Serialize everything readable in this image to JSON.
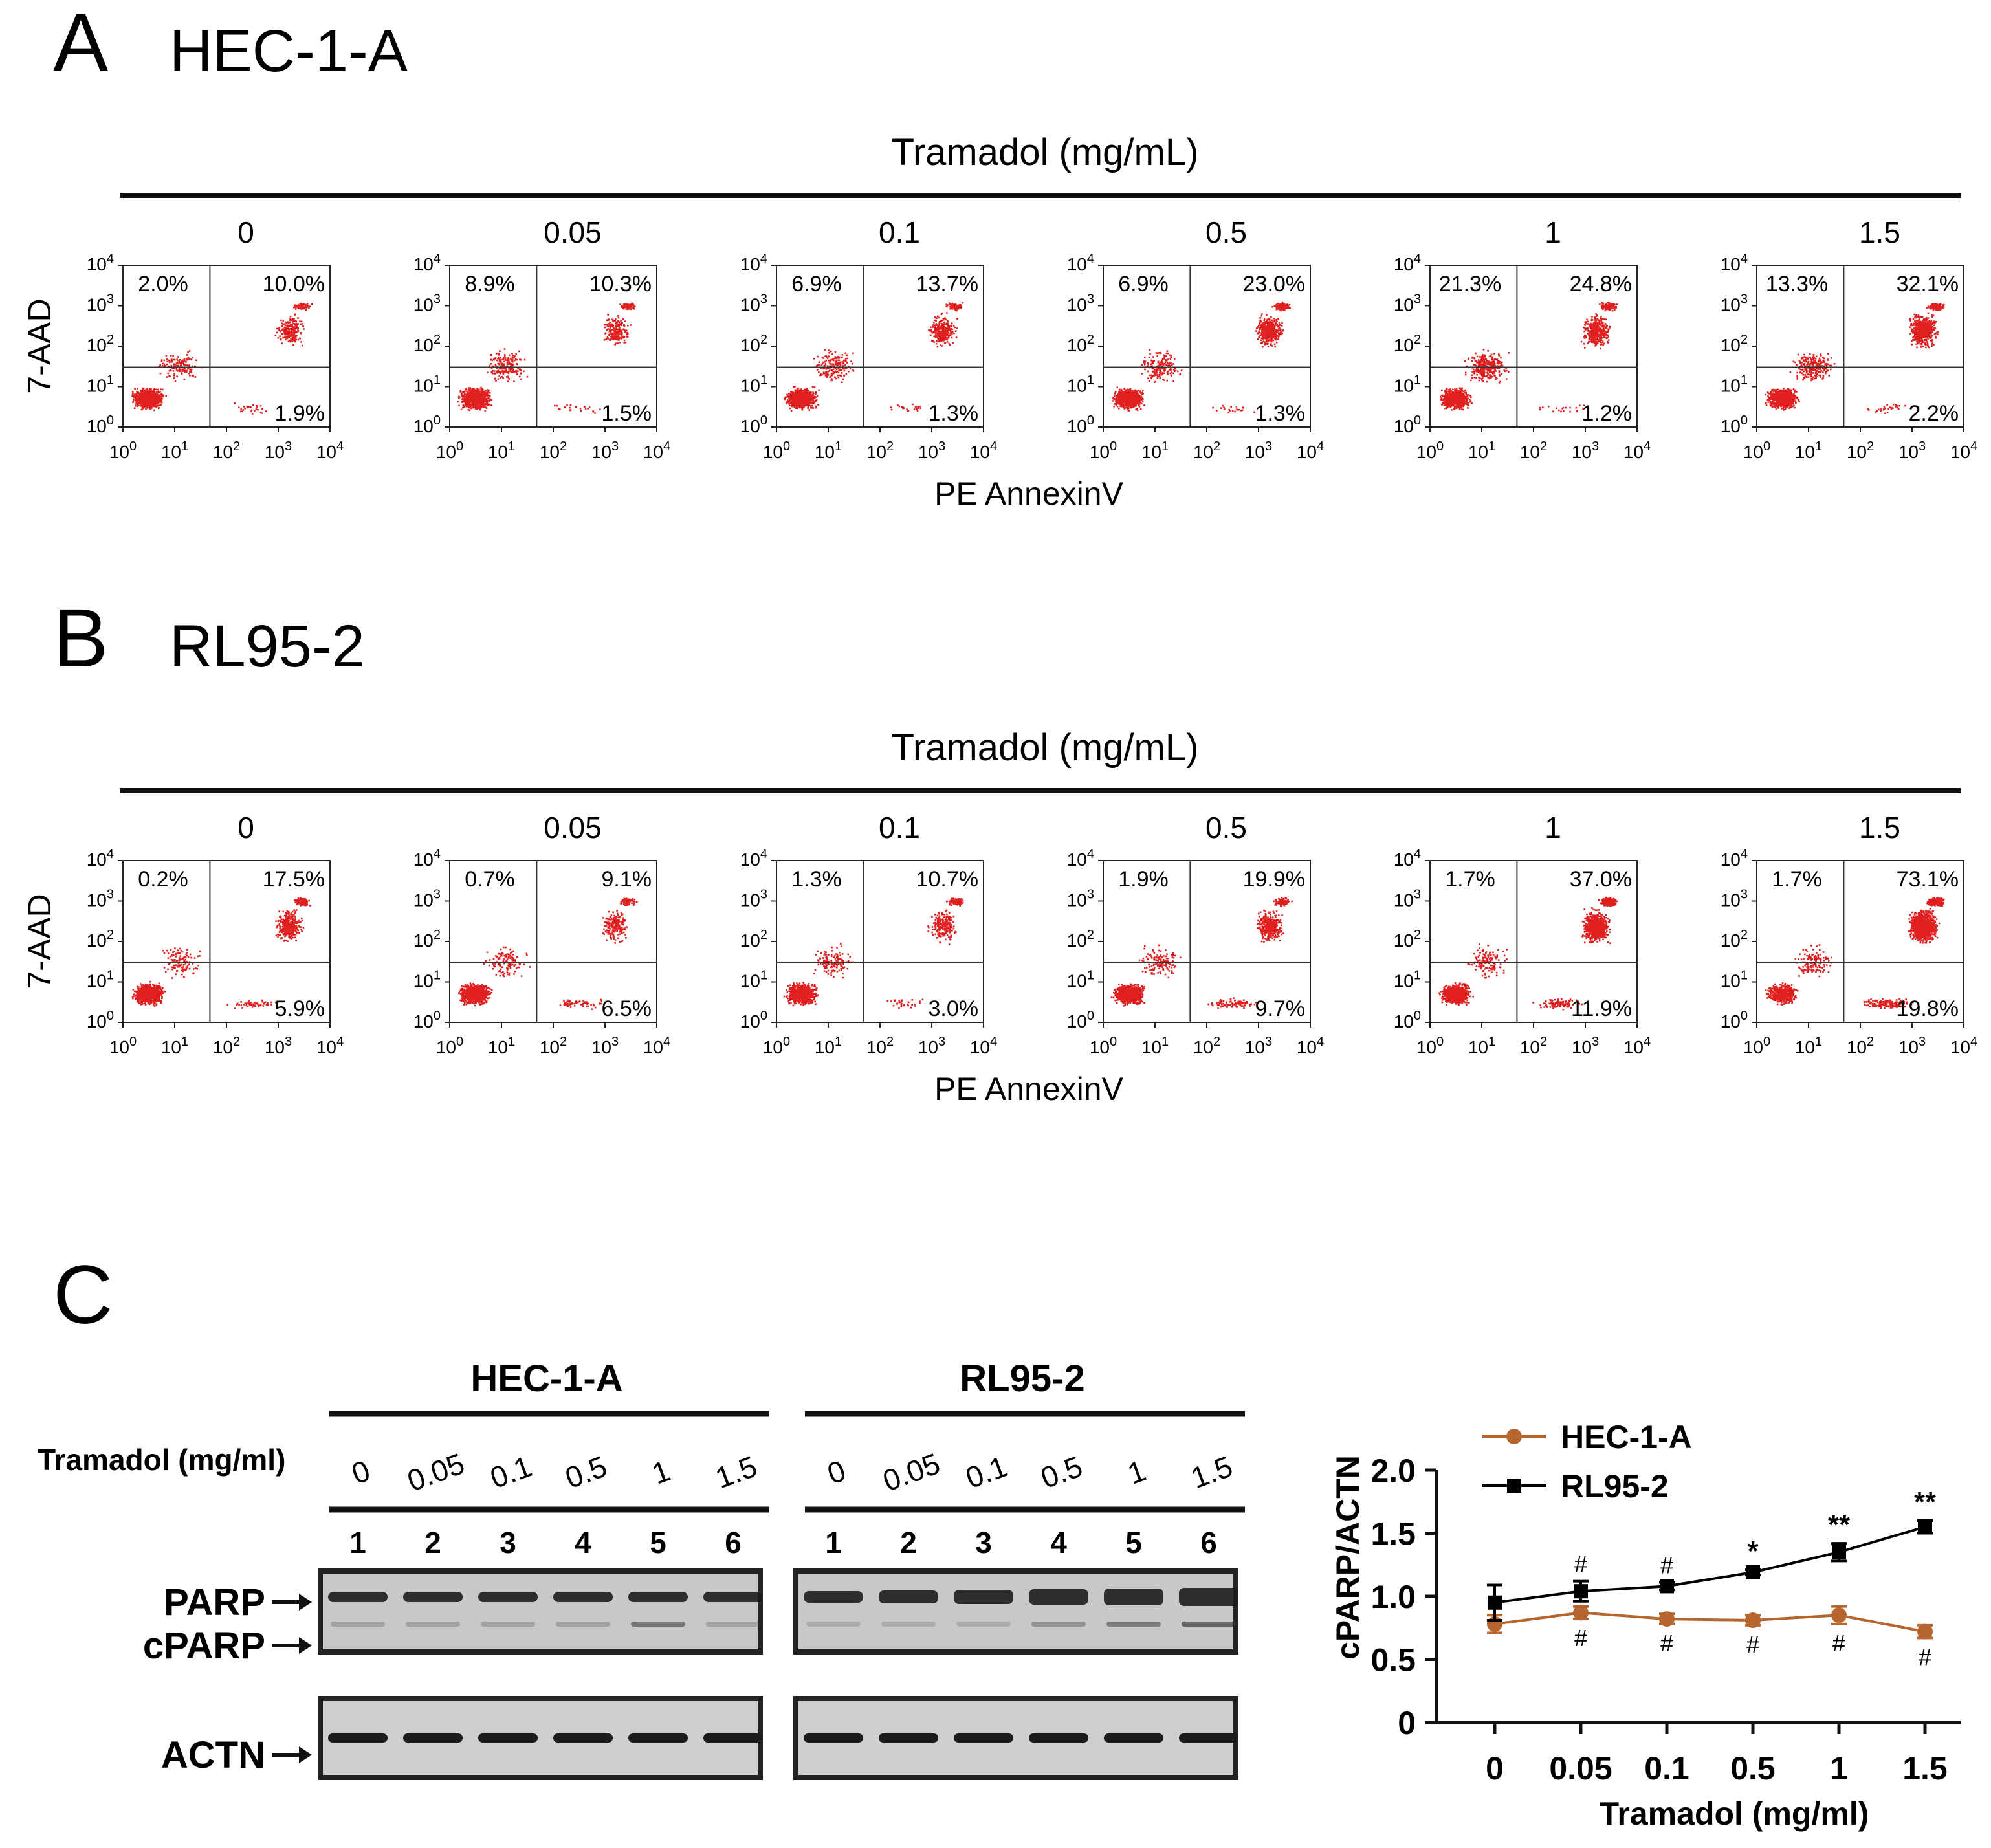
{
  "panel_a": {
    "letter": "A",
    "title": "HEC-1-A",
    "treatment_label": "Tramadol (mg/mL)",
    "x_label": "PE AnnexinV",
    "y_label": "7-AAD",
    "concentrations": [
      "0",
      "0.05",
      "0.1",
      "0.5",
      "1",
      "1.5"
    ],
    "plots": [
      {
        "upper_left": "2.0%",
        "upper_right": "10.0%",
        "lower_right": "1.9%"
      },
      {
        "upper_left": "8.9%",
        "upper_right": "10.3%",
        "lower_right": "1.5%"
      },
      {
        "upper_left": "6.9%",
        "upper_right": "13.7%",
        "lower_right": "1.3%"
      },
      {
        "upper_left": "6.9%",
        "upper_right": "23.0%",
        "lower_right": "1.3%"
      },
      {
        "upper_left": "21.3%",
        "upper_right": "24.8%",
        "lower_right": "1.2%"
      },
      {
        "upper_left": "13.3%",
        "upper_right": "32.1%",
        "lower_right": "2.2%"
      }
    ]
  },
  "panel_b": {
    "letter": "B",
    "title": "RL95-2",
    "treatment_label": "Tramadol (mg/mL)",
    "x_label": "PE AnnexinV",
    "y_label": "7-AAD",
    "concentrations": [
      "0",
      "0.05",
      "0.1",
      "0.5",
      "1",
      "1.5"
    ],
    "plots": [
      {
        "upper_left": "0.2%",
        "upper_right": "17.5%",
        "lower_right": "5.9%"
      },
      {
        "upper_left": "0.7%",
        "upper_right": "9.1%",
        "lower_right": "6.5%"
      },
      {
        "upper_left": "1.3%",
        "upper_right": "10.7%",
        "lower_right": "3.0%"
      },
      {
        "upper_left": "1.9%",
        "upper_right": "19.9%",
        "lower_right": "9.7%"
      },
      {
        "upper_left": "1.7%",
        "upper_right": "37.0%",
        "lower_right": "11.9%"
      },
      {
        "upper_left": "1.7%",
        "upper_right": "73.1%",
        "lower_right": "19.8%"
      }
    ]
  },
  "flow_axis_ticks": [
    "10",
    "10",
    "10",
    "10",
    "10"
  ],
  "flow_axis_exponents": [
    "0",
    "1",
    "2",
    "3",
    "4"
  ],
  "panel_c": {
    "letter": "C",
    "blot": {
      "cell_lines": [
        "HEC-1-A",
        "RL95-2"
      ],
      "treatment_label": "Tramadol (mg/ml)",
      "concentrations": [
        "0",
        "0.05",
        "0.1",
        "0.5",
        "1",
        "1.5"
      ],
      "lanes": [
        "1",
        "2",
        "3",
        "4",
        "5",
        "6"
      ],
      "band_labels": [
        "PARP",
        "cPARP",
        "ACTN"
      ]
    }
  },
  "chart_data": {
    "type": "line",
    "title": "",
    "xlabel": "Tramadol (mg/ml)",
    "ylabel": "cPARP/ACTN",
    "categories": [
      "0",
      "0.05",
      "0.1",
      "0.5",
      "1",
      "1.5"
    ],
    "ylim": [
      0,
      2.0
    ],
    "yticks": [
      "0",
      "0.5",
      "1.0",
      "1.5",
      "2.0"
    ],
    "legend_position": "top-left",
    "series": [
      {
        "name": "HEC-1-A",
        "color": "#b5652d",
        "marker": "circle",
        "values": [
          0.78,
          0.87,
          0.82,
          0.81,
          0.85,
          0.72
        ],
        "errors": [
          0.07,
          0.05,
          0.04,
          0.04,
          0.07,
          0.05
        ],
        "annotations": [
          "",
          "#",
          "#",
          "#",
          "#",
          "#"
        ]
      },
      {
        "name": "RL95-2",
        "color": "#000000",
        "marker": "square",
        "values": [
          0.95,
          1.04,
          1.08,
          1.19,
          1.35,
          1.55
        ],
        "errors": [
          0.14,
          0.08,
          0.03,
          0.02,
          0.07,
          0.05
        ],
        "annotations": [
          "",
          "#",
          "#",
          "*",
          "**",
          "**"
        ]
      }
    ]
  }
}
